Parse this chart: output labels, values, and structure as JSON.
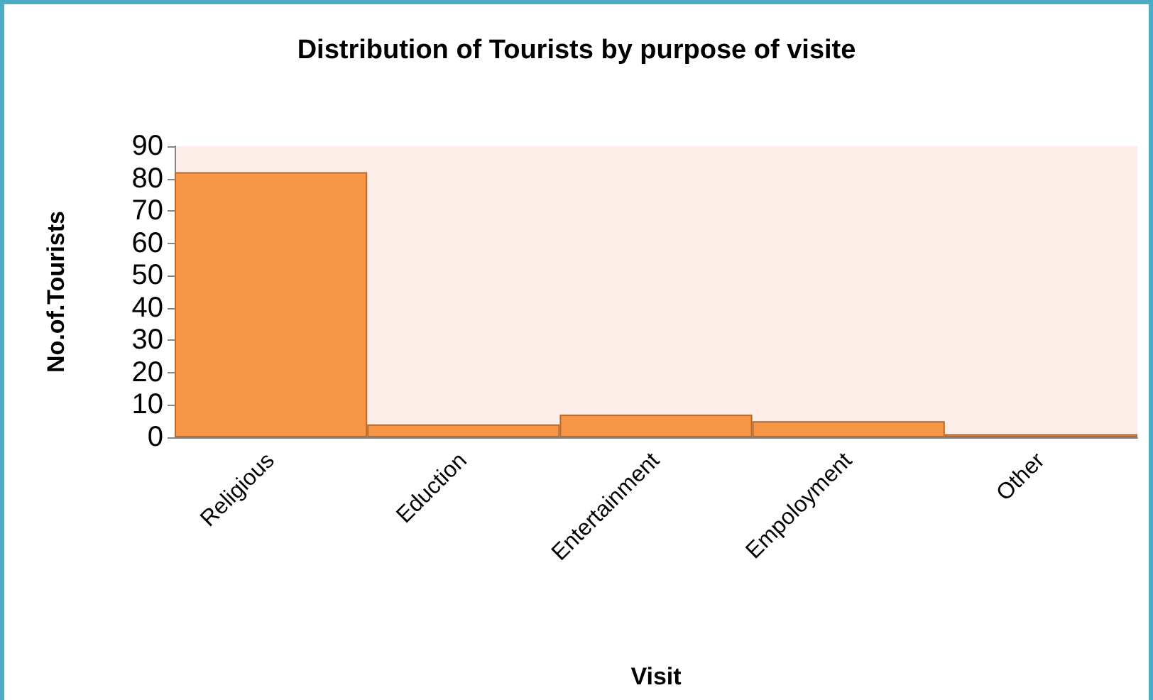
{
  "chart_data": {
    "type": "bar",
    "title": "Distribution of Tourists by purpose of visite",
    "xlabel": "Visit",
    "ylabel": "No.of.Tourists",
    "categories": [
      "Religious",
      "Eduction",
      "Entertainment",
      "Empoloyment",
      "Other"
    ],
    "values": [
      82,
      4,
      7,
      5,
      1
    ],
    "color": "#f79646",
    "ylim": [
      0,
      90
    ],
    "yticks": [
      0,
      10,
      20,
      30,
      40,
      50,
      60,
      70,
      80,
      90
    ],
    "grid": false
  }
}
